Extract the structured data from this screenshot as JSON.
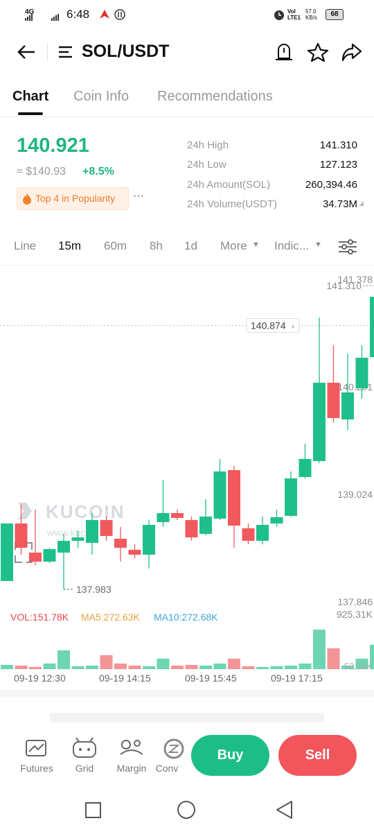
{
  "status_bar": {
    "network": "4G",
    "time": "6:48",
    "volte": "Vol LTE1",
    "speed": "57.0 KB/s",
    "battery": "68"
  },
  "header": {
    "title": "SOL/USDT"
  },
  "tabs": [
    "Chart",
    "Coin Info",
    "Recommendations"
  ],
  "ticker": {
    "price": "140.921",
    "fiat": "≈ $140.93",
    "change": "+8.5%",
    "badge": "Top 4 in Popularity",
    "stats": [
      {
        "label": "24h High",
        "value": "141.310"
      },
      {
        "label": "24h Low",
        "value": "127.123"
      },
      {
        "label": "24h Amount(SOL)",
        "value": "260,394.46"
      },
      {
        "label": "24h Volume(USDT)",
        "value": "34.73M"
      }
    ]
  },
  "intervals": [
    "Line",
    "15m",
    "60m",
    "8h",
    "1d",
    "More",
    "Indic..."
  ],
  "chart": {
    "watermark": "KUCOIN",
    "watermark_url": "www.kucoin",
    "price_labels": [
      141.378,
      {
        "value": 141.31,
        "label": "141.310"
      },
      140.201,
      139.024,
      137.846
    ],
    "current_price": 140.874,
    "low_mark": 137.983,
    "candles": [
      {
        "open": 138.074,
        "high": 138.704,
        "low": 138.074,
        "close": 138.704
      },
      {
        "open": 138.704,
        "high": 138.909,
        "low": 138.362,
        "close": 138.438
      },
      {
        "open": 138.385,
        "high": 138.856,
        "low": 138.249,
        "close": 138.286
      },
      {
        "open": 138.286,
        "high": 138.438,
        "low": 138.27,
        "close": 138.423
      },
      {
        "open": 138.385,
        "high": 138.59,
        "low": 137.983,
        "close": 138.514
      },
      {
        "open": 138.514,
        "high": 138.628,
        "low": 138.438,
        "close": 138.552
      },
      {
        "open": 138.492,
        "high": 138.818,
        "low": 138.362,
        "close": 138.742
      },
      {
        "open": 138.742,
        "high": 138.78,
        "low": 138.514,
        "close": 138.567
      },
      {
        "open": 138.537,
        "high": 138.666,
        "low": 138.286,
        "close": 138.438
      },
      {
        "open": 138.416,
        "high": 138.476,
        "low": 138.324,
        "close": 138.362
      },
      {
        "open": 138.362,
        "high": 138.742,
        "low": 138.21,
        "close": 138.689
      },
      {
        "open": 138.719,
        "high": 139.183,
        "low": 138.666,
        "close": 138.818
      },
      {
        "open": 138.818,
        "high": 138.856,
        "low": 138.742,
        "close": 138.765
      },
      {
        "open": 138.742,
        "high": 138.78,
        "low": 138.514,
        "close": 138.552
      },
      {
        "open": 138.59,
        "high": 138.97,
        "low": 138.575,
        "close": 138.78
      },
      {
        "open": 138.757,
        "high": 139.411,
        "low": 138.742,
        "close": 139.274
      },
      {
        "open": 139.289,
        "high": 139.335,
        "low": 138.438,
        "close": 138.681
      },
      {
        "open": 138.651,
        "high": 138.704,
        "low": 138.476,
        "close": 138.514
      },
      {
        "open": 138.514,
        "high": 138.78,
        "low": 138.476,
        "close": 138.689
      },
      {
        "open": 138.704,
        "high": 138.856,
        "low": 138.666,
        "close": 138.773
      },
      {
        "open": 138.788,
        "high": 139.274,
        "low": 138.773,
        "close": 139.198
      },
      {
        "open": 139.213,
        "high": 139.578,
        "low": 139.198,
        "close": 139.411
      },
      {
        "open": 139.388,
        "high": 140.96,
        "low": 139.365,
        "close": 140.246
      },
      {
        "open": 140.246,
        "high": 140.656,
        "low": 139.806,
        "close": 139.859
      },
      {
        "open": 139.844,
        "high": 140.565,
        "low": 139.73,
        "close": 140.14
      },
      {
        "open": 140.185,
        "high": 140.656,
        "low": 140.071,
        "close": 140.52
      },
      {
        "open": 140.527,
        "high": 141.264,
        "low": 140.489,
        "close": 141.188
      }
    ],
    "volume": {
      "vol": "VOL:151.78K",
      "ma5": "MA5:272.63K",
      "ma10": "MA10:272.68K",
      "top_label": {
        "value": 925.31,
        "label": "925.31K"
      },
      "bottom_label": {
        "value": 52.75,
        "label": "52.75K"
      },
      "values": [
        70,
        59,
        35,
        94,
        316,
        47,
        59,
        234,
        94,
        59,
        47,
        176,
        59,
        70,
        59,
        94,
        176,
        47,
        35,
        47,
        59,
        94,
        667,
        351,
        59,
        176,
        410
      ]
    },
    "time_labels": [
      "09-19 12:30",
      "09-19 14:15",
      "09-19 15:45",
      "09-19 17:15"
    ]
  },
  "bottom_nav": {
    "items": [
      "Futures",
      "Grid",
      "Margin",
      "Conv"
    ],
    "buy": "Buy",
    "sell": "Sell"
  }
}
